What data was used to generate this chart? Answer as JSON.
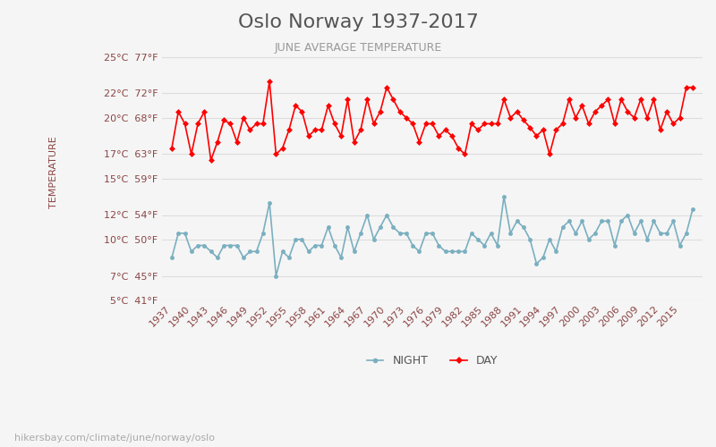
{
  "title": "Oslo Norway 1937-2017",
  "subtitle": "JUNE AVERAGE TEMPERATURE",
  "ylabel": "TEMPERATURE",
  "footer": "hikersbay.com/climate/june/norway/oslo",
  "legend_night": "NIGHT",
  "legend_day": "DAY",
  "years": [
    1937,
    1938,
    1939,
    1940,
    1941,
    1942,
    1943,
    1944,
    1945,
    1946,
    1947,
    1948,
    1949,
    1950,
    1951,
    1952,
    1953,
    1954,
    1955,
    1956,
    1957,
    1958,
    1959,
    1960,
    1961,
    1962,
    1963,
    1964,
    1965,
    1966,
    1967,
    1968,
    1969,
    1970,
    1971,
    1972,
    1973,
    1974,
    1975,
    1976,
    1977,
    1978,
    1979,
    1980,
    1981,
    1982,
    1983,
    1984,
    1985,
    1986,
    1987,
    1988,
    1989,
    1990,
    1991,
    1992,
    1993,
    1994,
    1995,
    1996,
    1997,
    1998,
    1999,
    2000,
    2001,
    2002,
    2003,
    2004,
    2005,
    2006,
    2007,
    2008,
    2009,
    2010,
    2011,
    2012,
    2013,
    2014,
    2015,
    2016,
    2017
  ],
  "day": [
    17.5,
    20.5,
    19.5,
    17.0,
    19.5,
    20.5,
    16.5,
    18.0,
    19.8,
    19.5,
    18.0,
    20.0,
    19.0,
    19.5,
    19.5,
    23.0,
    17.0,
    17.5,
    19.0,
    21.0,
    20.5,
    18.5,
    19.0,
    19.0,
    21.0,
    19.5,
    18.5,
    21.5,
    18.0,
    19.0,
    21.5,
    19.5,
    20.5,
    22.5,
    21.5,
    20.5,
    20.0,
    19.5,
    18.0,
    19.5,
    19.5,
    18.5,
    19.0,
    18.5,
    17.5,
    17.0,
    19.5,
    19.0,
    19.5,
    19.5,
    19.5,
    21.5,
    20.0,
    20.5,
    19.8,
    19.2,
    18.5,
    19.0,
    17.0,
    19.0,
    19.5,
    21.5,
    20.0,
    21.0,
    19.5,
    20.5,
    21.0,
    21.5,
    19.5,
    21.5,
    20.5,
    20.0,
    21.5,
    20.0,
    21.5,
    19.0,
    20.5,
    19.5,
    20.0,
    22.5,
    22.5
  ],
  "night": [
    8.5,
    10.5,
    10.5,
    9.0,
    9.5,
    9.5,
    9.0,
    8.5,
    9.5,
    9.5,
    9.5,
    8.5,
    9.0,
    9.0,
    10.5,
    13.0,
    7.0,
    9.0,
    8.5,
    10.0,
    10.0,
    9.0,
    9.5,
    9.5,
    11.0,
    9.5,
    8.5,
    11.0,
    9.0,
    10.5,
    12.0,
    10.0,
    11.0,
    12.0,
    11.0,
    10.5,
    10.5,
    9.5,
    9.0,
    10.5,
    10.5,
    9.5,
    9.0,
    9.0,
    9.0,
    9.0,
    10.5,
    10.0,
    9.5,
    10.5,
    9.5,
    13.5,
    10.5,
    11.5,
    11.0,
    10.0,
    8.0,
    8.5,
    10.0,
    9.0,
    11.0,
    11.5,
    10.5,
    11.5,
    10.0,
    10.5,
    11.5,
    11.5,
    9.5,
    11.5,
    12.0,
    10.5,
    11.5,
    10.0,
    11.5,
    10.5,
    10.5,
    11.5,
    9.5,
    10.5,
    12.5
  ],
  "yticks_c": [
    5,
    7,
    10,
    12,
    15,
    17,
    20,
    22,
    25
  ],
  "yticks_f": [
    41,
    45,
    50,
    54,
    59,
    63,
    68,
    72,
    77
  ],
  "ylim": [
    5,
    26
  ],
  "bg_color": "#f5f5f5",
  "day_color": "#ff0000",
  "night_color": "#7aafc0",
  "title_color": "#555555",
  "subtitle_color": "#999999",
  "label_color": "#8b4444",
  "grid_color": "#dddddd",
  "footer_color": "#aaaaaa",
  "title_fontsize": 16,
  "subtitle_fontsize": 9,
  "ylabel_fontsize": 8,
  "tick_fontsize": 8,
  "footer_fontsize": 8
}
